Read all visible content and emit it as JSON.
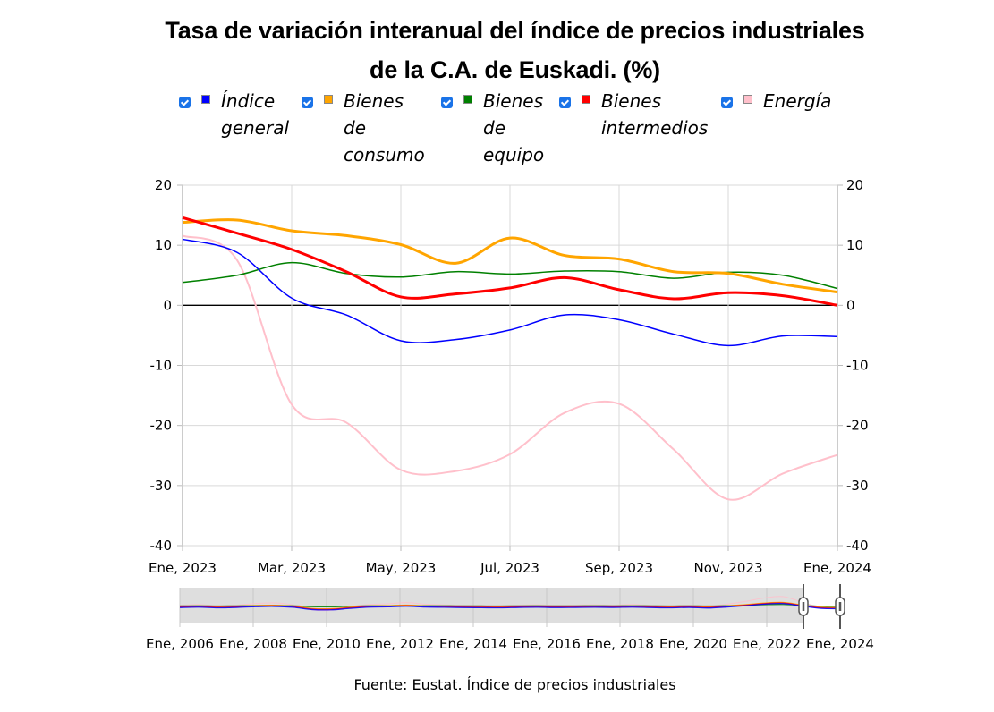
{
  "title_lines": [
    "Tasa de variación interanual del índice de precios industriales",
    "de la C.A. de Euskadi. (%)"
  ],
  "source": "Fuente: Eustat. Índice de precios industriales",
  "legend": [
    {
      "label": "Índice\ngeneral",
      "color": "#0000ff",
      "checked": true
    },
    {
      "label": "Bienes\nde\nconsumo",
      "color": "#ffa500",
      "checked": true
    },
    {
      "label": "Bienes\nde\nequipo",
      "color": "#008000",
      "checked": true
    },
    {
      "label": "Bienes\nintermedios",
      "color": "#ff0000",
      "checked": true
    },
    {
      "label": "Energía",
      "color": "#ffc0cb",
      "checked": true
    }
  ],
  "chart_data": {
    "type": "line",
    "title": "Tasa de variación interanual del índice de precios industriales de la C.A. de Euskadi. (%)",
    "xlabel": "",
    "ylabel": "",
    "x": [
      "Ene, 2023",
      "Feb, 2023",
      "Mar, 2023",
      "Abr, 2023",
      "May, 2023",
      "Jun, 2023",
      "Jul, 2023",
      "Ago, 2023",
      "Sep, 2023",
      "Oct, 2023",
      "Nov, 2023",
      "Dic, 2023",
      "Ene, 2024"
    ],
    "x_tick_labels": [
      "Ene, 2023",
      "Mar, 2023",
      "May, 2023",
      "Jul, 2023",
      "Sep, 2023",
      "Nov, 2023",
      "Ene, 2024"
    ],
    "y_ticks": [
      20,
      10,
      0,
      -10,
      -20,
      -30,
      -40
    ],
    "ylim": [
      -40,
      20
    ],
    "grid": true,
    "legend_position": "top",
    "dual_y_axis_mirrored": true,
    "series": [
      {
        "name": "Índice general",
        "color": "#0000ff",
        "values": [
          11.0,
          8.8,
          1.2,
          -1.6,
          -5.9,
          -5.7,
          -4.1,
          -1.6,
          -2.4,
          -4.8,
          -6.7,
          -5.1,
          -5.2
        ]
      },
      {
        "name": "Bienes de consumo",
        "color": "#ffa500",
        "values": [
          13.8,
          14.2,
          12.4,
          11.6,
          10.1,
          7.0,
          11.2,
          8.3,
          7.7,
          5.6,
          5.3,
          3.5,
          2.2
        ]
      },
      {
        "name": "Bienes de equipo",
        "color": "#008000",
        "values": [
          3.8,
          5.0,
          7.1,
          5.3,
          4.7,
          5.6,
          5.2,
          5.7,
          5.6,
          4.5,
          5.5,
          5.0,
          2.8
        ]
      },
      {
        "name": "Bienes intermedios",
        "color": "#ff0000",
        "values": [
          14.6,
          12.0,
          9.3,
          5.6,
          1.4,
          1.9,
          2.9,
          4.6,
          2.6,
          1.1,
          2.1,
          1.6,
          0.0
        ]
      },
      {
        "name": "Energía",
        "color": "#ffc0cb",
        "values": [
          11.6,
          7.5,
          -16.5,
          -19.5,
          -27.4,
          -27.6,
          -24.8,
          -17.9,
          -16.4,
          -24.0,
          -32.3,
          -28.0,
          -24.9
        ]
      }
    ],
    "navigator": {
      "tick_labels": [
        "Ene, 2006",
        "Ene, 2008",
        "Ene, 2010",
        "Ene, 2012",
        "Ene, 2014",
        "Ene, 2016",
        "Ene, 2018",
        "Ene, 2020",
        "Ene, 2022",
        "Ene, 2024"
      ],
      "range_start": "Ene, 2023",
      "range_end": "Ene, 2024"
    }
  }
}
